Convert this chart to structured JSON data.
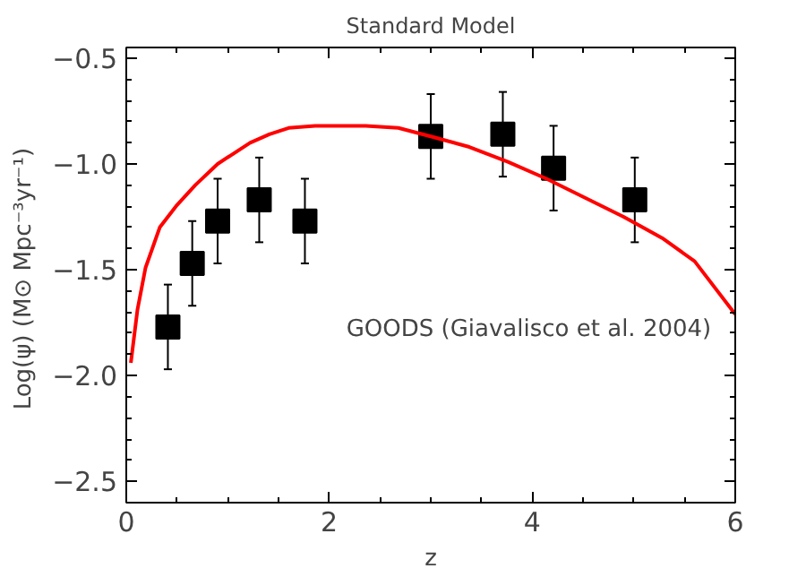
{
  "chart_data": {
    "type": "scatter",
    "title": "Standard Model",
    "xlabel": "z",
    "ylabel": "Log(ψ)  (M⊙ Mpc⁻³yr⁻¹)",
    "xlim": [
      0,
      6
    ],
    "ylim": [
      -2.6,
      -0.45
    ],
    "xticks": [
      0,
      2,
      4,
      6
    ],
    "yticks": [
      {
        "value": -2.5,
        "label": "−2.5"
      },
      {
        "value": -2.0,
        "label": "−2.0"
      },
      {
        "value": -1.5,
        "label": "−1.5"
      },
      {
        "value": -1.0,
        "label": "−1.0"
      },
      {
        "value": -0.5,
        "label": "−0.5"
      }
    ],
    "grid": false,
    "annotations": [
      "GOODS (Giavalisco et al. 2004)"
    ],
    "series": [
      {
        "color": "#000000",
        "marker": "square",
        "x": [
          0.41,
          0.65,
          0.9,
          1.31,
          1.76,
          3.0,
          3.71,
          4.21,
          5.01
        ],
        "values": [
          -1.77,
          -1.47,
          -1.27,
          -1.17,
          -1.27,
          -0.87,
          -0.86,
          -1.02,
          -1.17
        ],
        "errors": [
          0.2,
          0.2,
          0.2,
          0.2,
          0.2,
          0.2,
          0.2,
          0.2,
          0.2
        ]
      },
      {
        "type": "line",
        "color": "#ff0000",
        "line_style": "solid",
        "x": [
          0.045,
          0.11,
          0.19,
          0.33,
          0.49,
          0.68,
          0.9,
          1.22,
          1.41,
          1.6,
          1.86,
          2.36,
          2.68,
          3.0,
          3.38,
          3.76,
          4.14,
          4.52,
          4.9,
          5.28,
          5.6,
          6.0
        ],
        "values": [
          -1.94,
          -1.69,
          -1.49,
          -1.3,
          -1.2,
          -1.1,
          -1.0,
          -0.9,
          -0.86,
          -0.83,
          -0.82,
          -0.82,
          -0.83,
          -0.87,
          -0.92,
          -0.99,
          -1.07,
          -1.16,
          -1.25,
          -1.35,
          -1.46,
          -1.71
        ]
      }
    ]
  }
}
